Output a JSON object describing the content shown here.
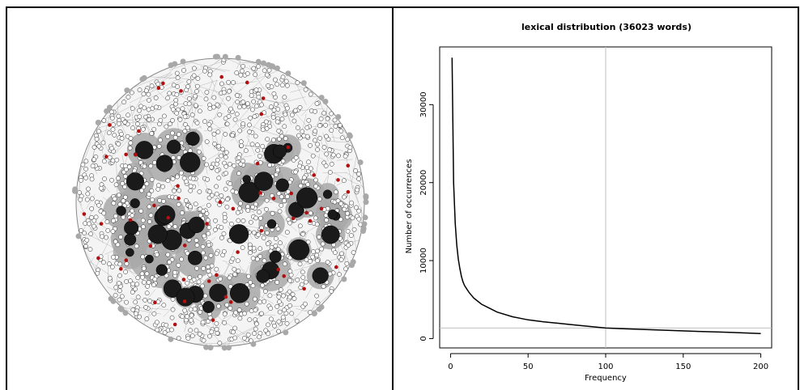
{
  "network": {
    "description_icon": "word-network-graph",
    "node_fill": "#ffffff",
    "node_stroke": "#222222",
    "hub_fill": "#1a1a1a",
    "halo_color": "#a8a8a8",
    "highlight_color": "#b01010",
    "edge_color": "#888888"
  },
  "chart_data": {
    "type": "line",
    "title": "lexical distribution (36023 words)",
    "xlabel": "Frequency",
    "ylabel": "Number of occurrences",
    "xlim": [
      -7,
      207
    ],
    "ylim": [
      -1200,
      37400
    ],
    "x_ticks": [
      0,
      50,
      100,
      150,
      200
    ],
    "y_ticks": [
      0,
      10000,
      20000,
      30000
    ],
    "grid": false,
    "legend": "none",
    "line_color": "#000000",
    "reference_color": "#bfbfbf",
    "reference_lines": {
      "vertical_x": 100,
      "horizontal_y": 1350
    },
    "series": [
      {
        "x": [
          1,
          2,
          3,
          4,
          5,
          6,
          7,
          8,
          9,
          10,
          12,
          15,
          20,
          25,
          30,
          40,
          50,
          60,
          70,
          80,
          90,
          100,
          120,
          140,
          160,
          180,
          200
        ],
        "values": [
          36023,
          20000,
          14800,
          12000,
          10200,
          9000,
          8000,
          7300,
          6800,
          6500,
          5900,
          5200,
          4400,
          3900,
          3400,
          2800,
          2400,
          2150,
          1950,
          1750,
          1550,
          1350,
          1200,
          1050,
          920,
          800,
          650
        ]
      }
    ]
  }
}
